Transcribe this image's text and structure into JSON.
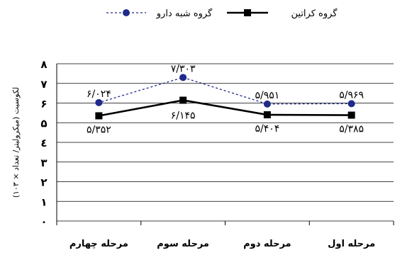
{
  "chart_data": {
    "type": "line",
    "categories": [
      "مرحله اول",
      "مرحله دوم",
      "مرحله سوم",
      "مرحله چهارم"
    ],
    "y_ticks": [
      "۰",
      "۱",
      "۲",
      "۳",
      "٤",
      "۵",
      "۶",
      "۷",
      "۸"
    ],
    "ylim": [
      0,
      8
    ],
    "ylabel": "لکوسیت (میکرولیتر/ تعداد × ۱۰۳)",
    "xlabel": "",
    "title": "",
    "grid": true,
    "legend_position": "top",
    "series": [
      {
        "name": "گروه کراتین",
        "values": [
          5.385,
          5.404,
          6.145,
          5.352
        ],
        "labels": [
          "۵/۳۸۵",
          "۵/۴۰۴",
          "۶/۱۴۵",
          "۵/۳۵۲"
        ],
        "color": "#000000",
        "style": "solid",
        "marker": "square"
      },
      {
        "name": "گروه شبه دارو",
        "values": [
          5.969,
          5.951,
          7.303,
          6.024
        ],
        "labels": [
          "۵/۹۶۹",
          "۵/۹۵۱",
          "۷/۳۰۳",
          "۶/۰۲۴"
        ],
        "color": "#1f2a8c",
        "style": "dotted",
        "marker": "circle"
      }
    ]
  }
}
